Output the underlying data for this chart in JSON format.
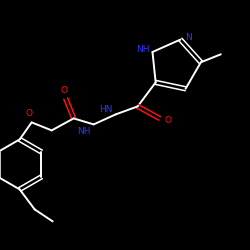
{
  "bg_color": "#000000",
  "bond_color": "#ffffff",
  "n_color": "#3333ff",
  "o_color": "#ff1111",
  "figsize": [
    2.5,
    2.5
  ],
  "dpi": 100,
  "xlim": [
    0,
    250
  ],
  "ylim": [
    0,
    250
  ]
}
